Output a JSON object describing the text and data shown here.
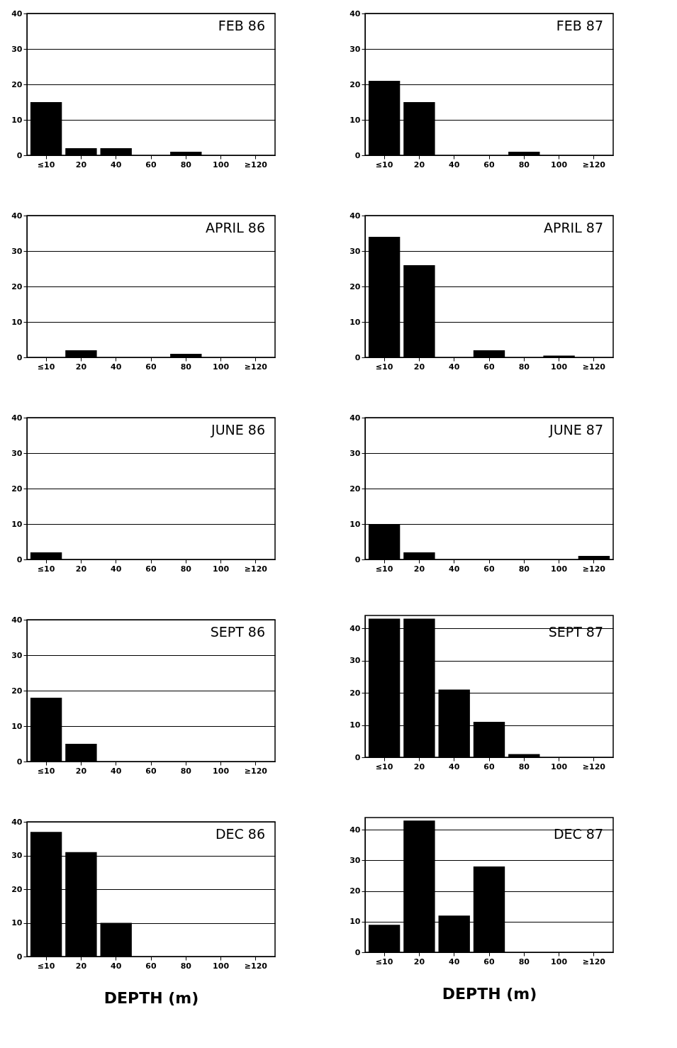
{
  "chart_data": [
    {
      "type": "bar",
      "title": "FEB 86",
      "categories": [
        "≤10",
        "20",
        "40",
        "60",
        "80",
        "100",
        "≥120"
      ],
      "values": [
        15,
        2,
        2,
        0,
        1,
        0,
        0
      ],
      "color": "#000000",
      "ylim": [
        0,
        40
      ],
      "yticks": [
        0,
        10,
        20,
        30,
        40
      ],
      "grid": "y"
    },
    {
      "type": "bar",
      "title": "FEB 87",
      "categories": [
        "≤10",
        "20",
        "40",
        "60",
        "80",
        "100",
        "≥120"
      ],
      "values": [
        21,
        15,
        0,
        0,
        1,
        0,
        0
      ],
      "color": "#000000",
      "ylim": [
        0,
        40
      ],
      "yticks": [
        0,
        10,
        20,
        30,
        40
      ],
      "grid": "y"
    },
    {
      "type": "bar",
      "title": "APRIL 86",
      "categories": [
        "≤10",
        "20",
        "40",
        "60",
        "80",
        "100",
        "≥120"
      ],
      "values": [
        0,
        2,
        0,
        0,
        1,
        0,
        0
      ],
      "color": "#000000",
      "ylim": [
        0,
        40
      ],
      "yticks": [
        0,
        10,
        20,
        30,
        40
      ],
      "grid": "y"
    },
    {
      "type": "bar",
      "title": "APRIL 87",
      "categories": [
        "≤10",
        "20",
        "40",
        "60",
        "80",
        "100",
        "≥120"
      ],
      "values": [
        34,
        26,
        0,
        2,
        0,
        0.5,
        0
      ],
      "color": "#000000",
      "ylim": [
        0,
        40
      ],
      "yticks": [
        0,
        10,
        20,
        30,
        40
      ],
      "grid": "y"
    },
    {
      "type": "bar",
      "title": "JUNE 86",
      "categories": [
        "≤10",
        "20",
        "40",
        "60",
        "80",
        "100",
        "≥120"
      ],
      "values": [
        2,
        0,
        0,
        0,
        0,
        0,
        0
      ],
      "color": "#000000",
      "ylim": [
        0,
        40
      ],
      "yticks": [
        0,
        10,
        20,
        30,
        40
      ],
      "grid": "y"
    },
    {
      "type": "bar",
      "title": "JUNE 87",
      "categories": [
        "≤10",
        "20",
        "40",
        "60",
        "80",
        "100",
        "≥120"
      ],
      "values": [
        10,
        2,
        0,
        0,
        0,
        0,
        1
      ],
      "color": "#000000",
      "ylim": [
        0,
        40
      ],
      "yticks": [
        0,
        10,
        20,
        30,
        40
      ],
      "grid": "y"
    },
    {
      "type": "bar",
      "title": "SEPT 86",
      "categories": [
        "≤10",
        "20",
        "40",
        "60",
        "80",
        "100",
        "≥120"
      ],
      "values": [
        18,
        5,
        0,
        0,
        0,
        0,
        0
      ],
      "color": "#000000",
      "ylim": [
        0,
        40
      ],
      "yticks": [
        0,
        10,
        20,
        30,
        40
      ],
      "grid": "y"
    },
    {
      "type": "bar",
      "title": "SEPT 87",
      "categories": [
        "≤10",
        "20",
        "40",
        "60",
        "80",
        "100",
        "≥120"
      ],
      "values": [
        43,
        43,
        21,
        11,
        1,
        0,
        0
      ],
      "color": "#000000",
      "ylim": [
        0,
        44
      ],
      "yticks": [
        0,
        10,
        20,
        30,
        40
      ],
      "grid": "y"
    },
    {
      "type": "bar",
      "title": "DEC 86",
      "categories": [
        "≤10",
        "20",
        "40",
        "60",
        "80",
        "100",
        "≥120"
      ],
      "values": [
        37,
        31,
        10,
        0,
        0,
        0,
        0
      ],
      "color": "#000000",
      "ylim": [
        0,
        40
      ],
      "yticks": [
        0,
        10,
        20,
        30,
        40
      ],
      "grid": "y",
      "xlabel": "DEPTH  (m)"
    },
    {
      "type": "bar",
      "title": "DEC 87",
      "categories": [
        "≤10",
        "20",
        "40",
        "60",
        "80",
        "100",
        "≥120"
      ],
      "values": [
        9,
        43,
        12,
        28,
        0,
        0,
        0
      ],
      "color": "#000000",
      "ylim": [
        0,
        44
      ],
      "yticks": [
        0,
        10,
        20,
        30,
        40
      ],
      "grid": "y",
      "xlabel": "DEPTH  (m)"
    }
  ]
}
